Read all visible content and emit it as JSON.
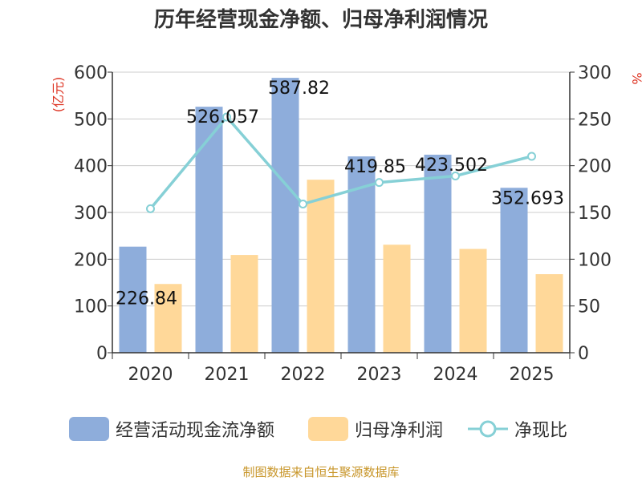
{
  "chart_data": {
    "type": "bar",
    "title": "历年经营现金净额、归母净利润情况",
    "ylabel_left": "(亿元)",
    "ylabel_right": "%",
    "categories": [
      "2020",
      "2021",
      "2022",
      "2023",
      "2024",
      "2025"
    ],
    "y_left": {
      "min": 0,
      "max": 600,
      "ticks": [
        0,
        100,
        200,
        300,
        400,
        500,
        600
      ]
    },
    "y_right": {
      "min": 0,
      "max": 300,
      "ticks": [
        0,
        50,
        100,
        150,
        200,
        250,
        300
      ]
    },
    "series": [
      {
        "name": "经营活动现金流净额",
        "kind": "bar",
        "axis": "left",
        "color": "#8eaddb",
        "values": [
          226.84,
          526.057,
          587.82,
          419.85,
          423.502,
          352.693
        ],
        "labels": [
          "226.84",
          "526.057",
          "587.82",
          "419.85",
          "423.502",
          "352.693"
        ]
      },
      {
        "name": "归母净利润",
        "kind": "bar",
        "axis": "left",
        "color": "#ffd899",
        "values": [
          147,
          209,
          370,
          231,
          222,
          168
        ]
      },
      {
        "name": "净现比",
        "kind": "line",
        "axis": "right",
        "color": "#86d0d6",
        "values": [
          154,
          252,
          159,
          182,
          189,
          210
        ]
      }
    ],
    "legend_position": "bottom"
  },
  "footer": {
    "source": "制图数据来自恒生聚源数据库"
  }
}
